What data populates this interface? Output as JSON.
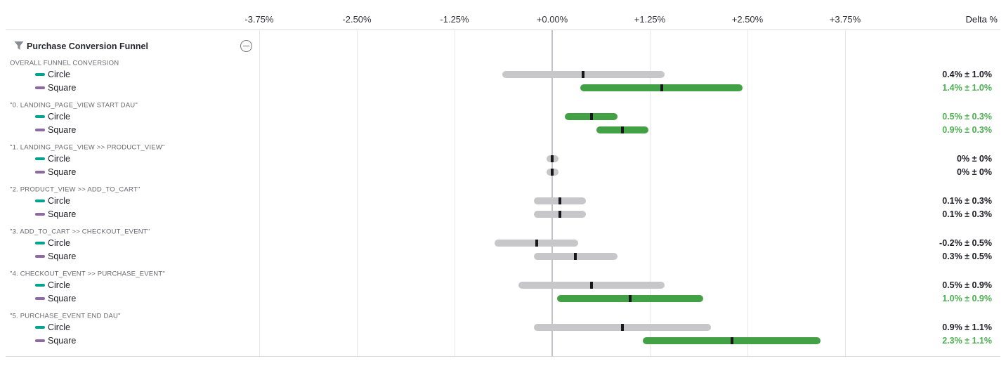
{
  "header": {
    "title": "Purchase Conversion Funnel",
    "filter_icon": "funnel-icon",
    "collapse_icon": "minus-circle-icon"
  },
  "axis": {
    "delta_label": "Delta %",
    "ticks": [
      "-3.75%",
      "-2.50%",
      "-1.25%",
      "+0.00%",
      "+1.25%",
      "+2.50%",
      "+3.75%"
    ],
    "tick_values": [
      -3.75,
      -2.5,
      -1.25,
      0,
      1.25,
      2.5,
      3.75
    ]
  },
  "colors": {
    "bar_gray": "#c7c7ca",
    "bar_green": "#43a145",
    "value_neutral": "#1d1d26",
    "value_positive": "#4caf50",
    "series_circle": "#00a38b",
    "series_square": "#8d6aa3",
    "tick_mark": "#17171c"
  },
  "chart_data": {
    "type": "bar",
    "subtype": "confidence-interval-range-bars",
    "title": "Purchase Conversion Funnel",
    "xlabel": "Delta %",
    "xlim": [
      -4.7,
      5.8
    ],
    "grid": "vertical",
    "legend_position": "left-per-row",
    "series_names": [
      "Circle",
      "Square"
    ],
    "groups": [
      {
        "label": "OVERALL FUNNEL CONVERSION",
        "rows": [
          {
            "series": "Circle",
            "value": 0.4,
            "ci": 1.0,
            "display": "0.4% ± 1.0%",
            "significant": false
          },
          {
            "series": "Square",
            "value": 1.4,
            "ci": 1.0,
            "display": "1.4% ± 1.0%",
            "significant": true
          }
        ]
      },
      {
        "label": "\"0. LANDING_PAGE_VIEW START DAU\"",
        "rows": [
          {
            "series": "Circle",
            "value": 0.5,
            "ci": 0.3,
            "display": "0.5% ± 0.3%",
            "significant": true
          },
          {
            "series": "Square",
            "value": 0.9,
            "ci": 0.3,
            "display": "0.9% ± 0.3%",
            "significant": true
          }
        ]
      },
      {
        "label": "\"1. LANDING_PAGE_VIEW >> PRODUCT_VIEW\"",
        "rows": [
          {
            "series": "Circle",
            "value": 0,
            "ci": 0,
            "display": "0% ± 0%",
            "significant": false
          },
          {
            "series": "Square",
            "value": 0,
            "ci": 0,
            "display": "0% ± 0%",
            "significant": false
          }
        ]
      },
      {
        "label": "\"2. PRODUCT_VIEW >> ADD_TO_CART\"",
        "rows": [
          {
            "series": "Circle",
            "value": 0.1,
            "ci": 0.3,
            "display": "0.1% ± 0.3%",
            "significant": false
          },
          {
            "series": "Square",
            "value": 0.1,
            "ci": 0.3,
            "display": "0.1% ± 0.3%",
            "significant": false
          }
        ]
      },
      {
        "label": "\"3. ADD_TO_CART >> CHECKOUT_EVENT\"",
        "rows": [
          {
            "series": "Circle",
            "value": -0.2,
            "ci": 0.5,
            "display": "-0.2% ± 0.5%",
            "significant": false
          },
          {
            "series": "Square",
            "value": 0.3,
            "ci": 0.5,
            "display": "0.3% ± 0.5%",
            "significant": false
          }
        ]
      },
      {
        "label": "\"4. CHECKOUT_EVENT >> PURCHASE_EVENT\"",
        "rows": [
          {
            "series": "Circle",
            "value": 0.5,
            "ci": 0.9,
            "display": "0.5% ± 0.9%",
            "significant": false
          },
          {
            "series": "Square",
            "value": 1.0,
            "ci": 0.9,
            "display": "1.0% ± 0.9%",
            "significant": true
          }
        ]
      },
      {
        "label": "\"5. PURCHASE_EVENT END DAU\"",
        "rows": [
          {
            "series": "Circle",
            "value": 0.9,
            "ci": 1.1,
            "display": "0.9% ± 1.1%",
            "significant": false
          },
          {
            "series": "Square",
            "value": 2.3,
            "ci": 1.1,
            "display": "2.3% ± 1.1%",
            "significant": true
          }
        ]
      }
    ]
  }
}
